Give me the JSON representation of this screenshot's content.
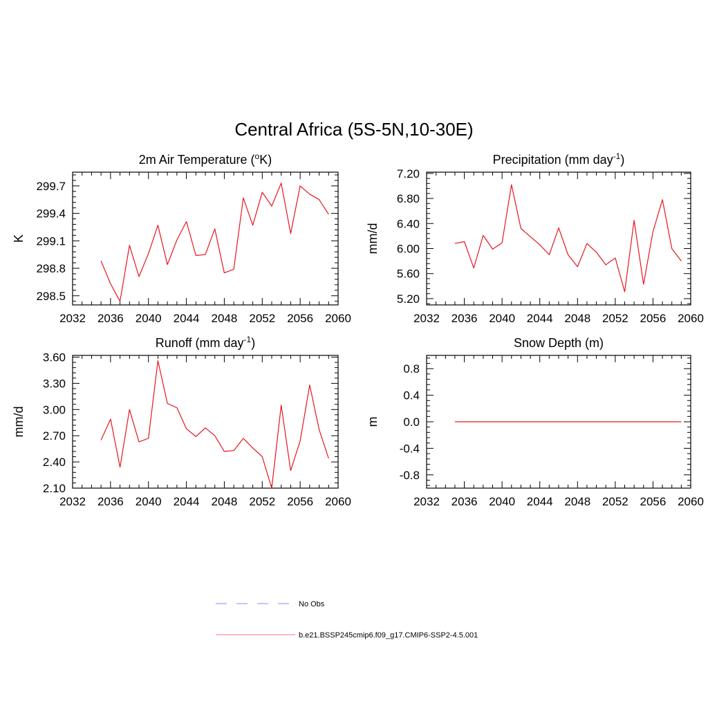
{
  "figure": {
    "title": "Central Africa (5S-5N,10-30E)"
  },
  "chart_data": [
    {
      "type": "line",
      "title": "2m Air Temperature (",
      "title_sup": "o",
      "title_tail": "K)",
      "xlabel": "",
      "ylabel": "K",
      "xlim": [
        2032,
        2060
      ],
      "ylim": [
        298.4,
        299.85
      ],
      "xticks": [
        2032,
        2036,
        2040,
        2044,
        2048,
        2052,
        2056,
        2060
      ],
      "yticks": [
        "298.5",
        "298.8",
        "299.1",
        "299.4",
        "299.7"
      ],
      "series": [
        {
          "color": "#e8141e",
          "x": [
            2035,
            2036,
            2037,
            2038,
            2039,
            2040,
            2041,
            2042,
            2043,
            2044,
            2045,
            2046,
            2047,
            2048,
            2049,
            2050,
            2051,
            2052,
            2053,
            2054,
            2055,
            2056,
            2057,
            2058,
            2059
          ],
          "values": [
            298.88,
            298.63,
            298.44,
            299.05,
            298.71,
            298.96,
            299.27,
            298.84,
            299.11,
            299.31,
            298.94,
            298.95,
            299.23,
            298.75,
            298.79,
            299.57,
            299.27,
            299.63,
            299.48,
            299.73,
            299.18,
            299.7,
            299.61,
            299.55,
            299.39
          ]
        }
      ]
    },
    {
      "type": "line",
      "title": "Precipitation (mm day",
      "title_sup": "-1",
      "title_tail": ")",
      "xlabel": "",
      "ylabel": "mm/d",
      "xlim": [
        2032,
        2060
      ],
      "ylim": [
        5.1,
        7.22
      ],
      "xticks": [
        2032,
        2036,
        2040,
        2044,
        2048,
        2052,
        2056,
        2060
      ],
      "yticks": [
        "5.20",
        "5.60",
        "6.00",
        "6.40",
        "6.80",
        "7.20"
      ],
      "series": [
        {
          "color": "#e8141e",
          "x": [
            2035,
            2036,
            2037,
            2038,
            2039,
            2040,
            2041,
            2042,
            2043,
            2044,
            2045,
            2046,
            2047,
            2048,
            2049,
            2050,
            2051,
            2052,
            2053,
            2054,
            2055,
            2056,
            2057,
            2058,
            2059
          ],
          "values": [
            6.08,
            6.11,
            5.69,
            6.21,
            5.99,
            6.09,
            7.02,
            6.32,
            6.19,
            6.06,
            5.9,
            6.33,
            5.9,
            5.71,
            6.08,
            5.94,
            5.74,
            5.85,
            5.31,
            6.45,
            5.43,
            6.27,
            6.78,
            6.0,
            5.8
          ]
        }
      ]
    },
    {
      "type": "line",
      "title": "Runoff (mm day",
      "title_sup": "-1",
      "title_tail": ")",
      "xlabel": "",
      "ylabel": "mm/d",
      "xlim": [
        2032,
        2060
      ],
      "ylim": [
        2.1,
        3.62
      ],
      "xticks": [
        2032,
        2036,
        2040,
        2044,
        2048,
        2052,
        2056,
        2060
      ],
      "yticks": [
        "2.10",
        "2.40",
        "2.70",
        "3.00",
        "3.30",
        "3.60"
      ],
      "series": [
        {
          "color": "#e8141e",
          "x": [
            2035,
            2036,
            2037,
            2038,
            2039,
            2040,
            2041,
            2042,
            2043,
            2044,
            2045,
            2046,
            2047,
            2048,
            2049,
            2050,
            2051,
            2052,
            2053,
            2054,
            2055,
            2056,
            2057,
            2058,
            2059
          ],
          "values": [
            2.65,
            2.89,
            2.34,
            3.0,
            2.63,
            2.67,
            3.56,
            3.07,
            3.02,
            2.78,
            2.69,
            2.79,
            2.7,
            2.52,
            2.53,
            2.67,
            2.56,
            2.46,
            2.1,
            3.05,
            2.3,
            2.64,
            3.28,
            2.77,
            2.44
          ]
        }
      ]
    },
    {
      "type": "line",
      "title": "Snow Depth (m)",
      "title_sup": "",
      "title_tail": "",
      "xlabel": "",
      "ylabel": "m",
      "xlim": [
        2032,
        2060
      ],
      "ylim": [
        -1.0,
        1.0
      ],
      "xticks": [
        2032,
        2036,
        2040,
        2044,
        2048,
        2052,
        2056,
        2060
      ],
      "yticks": [
        "-0.8",
        "-0.4",
        "0.0",
        "0.4",
        "0.8"
      ],
      "series": [
        {
          "color": "#e8141e",
          "x": [
            2035,
            2059
          ],
          "values": [
            0.0,
            0.0
          ]
        }
      ]
    }
  ],
  "legend": {
    "placement": "bottom-center",
    "items": [
      {
        "label": "No Obs",
        "color": "#9f9fff",
        "style": "dashed"
      },
      {
        "label": "b.e21.BSSP245cmip6.f09_g17.CMIP6-SSP2-4.5.001",
        "color": "#ff8f8f",
        "style": "solid"
      }
    ]
  }
}
